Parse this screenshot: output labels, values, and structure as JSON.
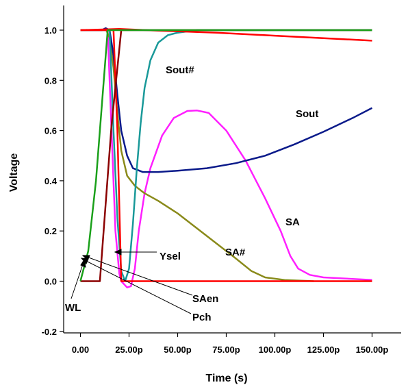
{
  "chart_data": {
    "type": "line",
    "xlabel": "Time (s)",
    "ylabel": "Voltage",
    "xlim": [
      -12,
      155
    ],
    "ylim": [
      -0.2,
      1.1
    ],
    "x_tick_values": [
      0,
      25,
      50,
      75,
      100,
      125,
      150
    ],
    "x_tick_labels": [
      "0.00",
      "25.00p",
      "50.00p",
      "75.00p",
      "100.00p",
      "125.00p",
      "150.00p"
    ],
    "y_tick_values": [
      -0.2,
      0.0,
      0.2,
      0.4,
      0.6,
      0.8,
      1.0
    ],
    "y_tick_labels": [
      "-0.2",
      "0.0",
      "0.2",
      "0.4",
      "0.6",
      "0.8",
      "1.0"
    ],
    "series": [
      {
        "name": "SA",
        "color": "#ff1fff",
        "points": [
          [
            0,
            1.0
          ],
          [
            14,
            1.0
          ],
          [
            16,
            0.6
          ],
          [
            18,
            0.2
          ],
          [
            20,
            0.03
          ],
          [
            21,
            0.0
          ],
          [
            24,
            -0.025
          ],
          [
            26,
            -0.02
          ],
          [
            28,
            0.05
          ],
          [
            30,
            0.2
          ],
          [
            33,
            0.35
          ],
          [
            36,
            0.45
          ],
          [
            42,
            0.58
          ],
          [
            48,
            0.65
          ],
          [
            55,
            0.678
          ],
          [
            60,
            0.68
          ],
          [
            66,
            0.67
          ],
          [
            75,
            0.6
          ],
          [
            85,
            0.48
          ],
          [
            95,
            0.33
          ],
          [
            103,
            0.2
          ],
          [
            108,
            0.1
          ],
          [
            112,
            0.05
          ],
          [
            118,
            0.025
          ],
          [
            125,
            0.015
          ],
          [
            150,
            0.005
          ]
        ]
      },
      {
        "name": "SA#",
        "color": "#8a8a1a",
        "points": [
          [
            0,
            1.0
          ],
          [
            11,
            1.0
          ],
          [
            13,
            1.005
          ],
          [
            15,
            0.97
          ],
          [
            17,
            0.85
          ],
          [
            19,
            0.67
          ],
          [
            21,
            0.52
          ],
          [
            24,
            0.42
          ],
          [
            28,
            0.38
          ],
          [
            33,
            0.35
          ],
          [
            40,
            0.32
          ],
          [
            50,
            0.27
          ],
          [
            60,
            0.21
          ],
          [
            70,
            0.15
          ],
          [
            80,
            0.09
          ],
          [
            88,
            0.04
          ],
          [
            95,
            0.015
          ],
          [
            105,
            0.005
          ],
          [
            120,
            0.0
          ]
        ]
      },
      {
        "name": "Sout",
        "color": "#0a1a8a",
        "points": [
          [
            0,
            1.0
          ],
          [
            11,
            1.0
          ],
          [
            13,
            1.008
          ],
          [
            15,
            1.0
          ],
          [
            17,
            0.9
          ],
          [
            19,
            0.74
          ],
          [
            21,
            0.6
          ],
          [
            24,
            0.5
          ],
          [
            27,
            0.45
          ],
          [
            32,
            0.435
          ],
          [
            40,
            0.435
          ],
          [
            50,
            0.44
          ],
          [
            65,
            0.45
          ],
          [
            80,
            0.47
          ],
          [
            95,
            0.5
          ],
          [
            110,
            0.545
          ],
          [
            125,
            0.595
          ],
          [
            140,
            0.65
          ],
          [
            150,
            0.69
          ]
        ]
      },
      {
        "name": "Sout#",
        "color": "#199999",
        "points": [
          [
            0,
            1.0
          ],
          [
            15,
            1.0
          ],
          [
            17,
            0.6
          ],
          [
            19,
            0.25
          ],
          [
            21,
            0.04
          ],
          [
            23,
            0.0
          ],
          [
            25,
            0.05
          ],
          [
            27,
            0.23
          ],
          [
            29,
            0.45
          ],
          [
            31,
            0.63
          ],
          [
            33,
            0.77
          ],
          [
            36,
            0.88
          ],
          [
            40,
            0.95
          ],
          [
            45,
            0.98
          ],
          [
            50,
            0.99
          ],
          [
            60,
            1.0
          ],
          [
            150,
            1.0
          ]
        ]
      },
      {
        "name": "Ysel",
        "color": "#ff0000",
        "points": [
          [
            0,
            1.0
          ],
          [
            15,
            1.0
          ],
          [
            17,
            1.0
          ],
          [
            19,
            0.6
          ],
          [
            20,
            0.3
          ],
          [
            21,
            0.0
          ],
          [
            150,
            0.0
          ]
        ]
      },
      {
        "name": "Pch",
        "color": "#ff0000",
        "points": [
          [
            0,
            1.0
          ],
          [
            20,
            1.005
          ],
          [
            40,
            0.998
          ],
          [
            70,
            0.99
          ],
          [
            100,
            0.978
          ],
          [
            125,
            0.968
          ],
          [
            150,
            0.958
          ]
        ]
      },
      {
        "name": "SAen",
        "color": "#8b0000",
        "points": [
          [
            0,
            0.0
          ],
          [
            10,
            0.0
          ],
          [
            16,
            0.62
          ],
          [
            21,
            1.0
          ],
          [
            150,
            1.0
          ]
        ]
      },
      {
        "name": "WL",
        "color": "#1aa01a",
        "points": [
          [
            0,
            0.0
          ],
          [
            4,
            0.12
          ],
          [
            8,
            0.4
          ],
          [
            12,
            0.8
          ],
          [
            14,
            1.0
          ],
          [
            150,
            1.0
          ]
        ]
      }
    ],
    "annotations": [
      "Sout#",
      "Sout",
      "SA",
      "SA#",
      "Ysel",
      "WL",
      "SAen",
      "Pch"
    ]
  }
}
